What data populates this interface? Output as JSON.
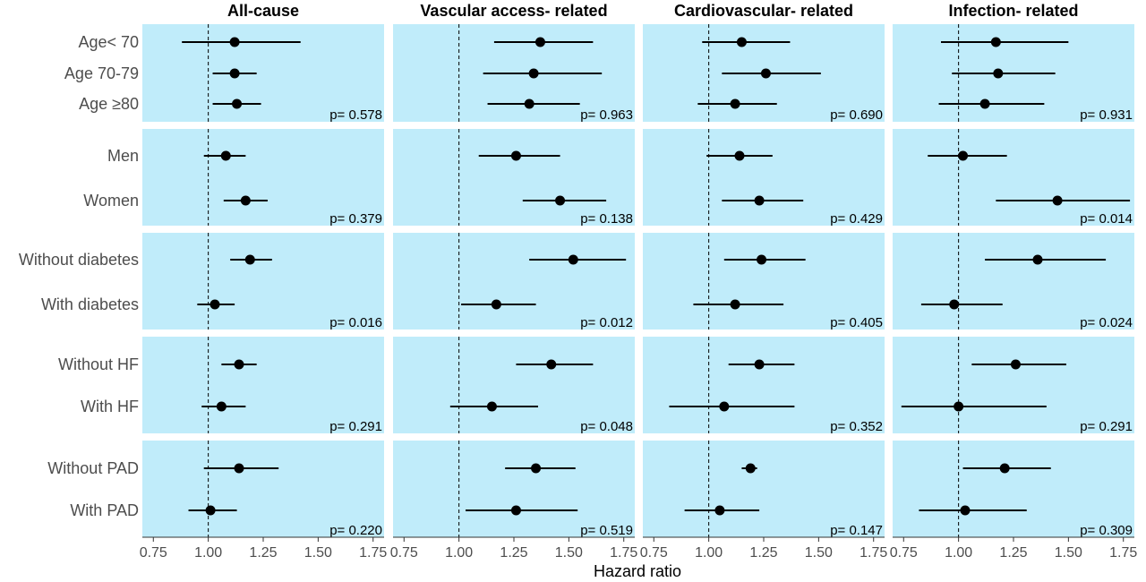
{
  "chart_data": {
    "type": "forest",
    "xlabel": "Hazard ratio",
    "xlim": [
      0.7,
      1.8
    ],
    "xticks": [
      "0.75",
      "1.00",
      "1.25",
      "1.50",
      "1.75"
    ],
    "xtick_values": [
      0.75,
      1.0,
      1.25,
      1.5,
      1.75
    ],
    "reference_line": 1.0,
    "panel_background": "#c0ecfa",
    "point_color": "#000000",
    "panels": [
      "All-cause",
      "Vascular access- related",
      "Cardiovascular- related",
      "Infection- related"
    ],
    "groups": [
      {
        "labels": [
          "Age< 70",
          "Age 70-79",
          "Age ≥80"
        ],
        "estimates": [
          [
            [
              1.12,
              0.88,
              1.42
            ],
            [
              1.12,
              1.02,
              1.22
            ],
            [
              1.13,
              1.02,
              1.24
            ]
          ],
          [
            [
              1.37,
              1.16,
              1.61
            ],
            [
              1.34,
              1.11,
              1.65
            ],
            [
              1.32,
              1.13,
              1.55
            ]
          ],
          [
            [
              1.15,
              0.97,
              1.37
            ],
            [
              1.26,
              1.06,
              1.51
            ],
            [
              1.12,
              0.95,
              1.31
            ]
          ],
          [
            [
              1.17,
              0.92,
              1.5
            ],
            [
              1.18,
              0.97,
              1.44
            ],
            [
              1.12,
              0.91,
              1.39
            ]
          ]
        ],
        "pvalues": [
          "p= 0.578",
          "p= 0.963",
          "p= 0.690",
          "p= 0.931"
        ]
      },
      {
        "labels": [
          "Men",
          "Women"
        ],
        "estimates": [
          [
            [
              1.08,
              0.98,
              1.17
            ],
            [
              1.17,
              1.07,
              1.27
            ]
          ],
          [
            [
              1.26,
              1.09,
              1.46
            ],
            [
              1.46,
              1.29,
              1.67
            ]
          ],
          [
            [
              1.14,
              0.99,
              1.29
            ],
            [
              1.23,
              1.06,
              1.43
            ]
          ],
          [
            [
              1.02,
              0.86,
              1.22
            ],
            [
              1.45,
              1.17,
              1.78
            ]
          ]
        ],
        "pvalues": [
          "p= 0.379",
          "p= 0.138",
          "p= 0.429",
          "p= 0.014"
        ]
      },
      {
        "labels": [
          "Without diabetes",
          "With diabetes"
        ],
        "estimates": [
          [
            [
              1.19,
              1.1,
              1.29
            ],
            [
              1.03,
              0.95,
              1.12
            ]
          ],
          [
            [
              1.52,
              1.32,
              1.76
            ],
            [
              1.17,
              1.01,
              1.35
            ]
          ],
          [
            [
              1.24,
              1.07,
              1.44
            ],
            [
              1.12,
              0.93,
              1.34
            ]
          ],
          [
            [
              1.36,
              1.12,
              1.67
            ],
            [
              0.98,
              0.83,
              1.2
            ]
          ]
        ],
        "pvalues": [
          "p= 0.016",
          "p= 0.012",
          "p= 0.405",
          "p= 0.024"
        ]
      },
      {
        "labels": [
          "Without HF",
          "With HF"
        ],
        "estimates": [
          [
            [
              1.14,
              1.06,
              1.22
            ],
            [
              1.06,
              0.97,
              1.17
            ]
          ],
          [
            [
              1.42,
              1.26,
              1.61
            ],
            [
              1.15,
              0.96,
              1.36
            ]
          ],
          [
            [
              1.23,
              1.09,
              1.39
            ],
            [
              1.07,
              0.82,
              1.39
            ]
          ],
          [
            [
              1.26,
              1.06,
              1.49
            ],
            [
              1.0,
              0.74,
              1.4
            ]
          ]
        ],
        "pvalues": [
          "p= 0.291",
          "p= 0.048",
          "p= 0.352",
          "p= 0.291"
        ]
      },
      {
        "labels": [
          "Without PAD",
          "With PAD"
        ],
        "estimates": [
          [
            [
              1.14,
              0.98,
              1.32
            ],
            [
              1.01,
              0.91,
              1.13
            ]
          ],
          [
            [
              1.35,
              1.21,
              1.53
            ],
            [
              1.26,
              1.03,
              1.54
            ]
          ],
          [
            [
              1.19,
              1.15,
              1.22
            ],
            [
              1.05,
              0.89,
              1.23
            ]
          ],
          [
            [
              1.21,
              1.02,
              1.42
            ],
            [
              1.03,
              0.82,
              1.31
            ]
          ]
        ],
        "pvalues": [
          "p= 0.220",
          "p= 0.519",
          "p= 0.147",
          "p= 0.309"
        ]
      }
    ]
  }
}
